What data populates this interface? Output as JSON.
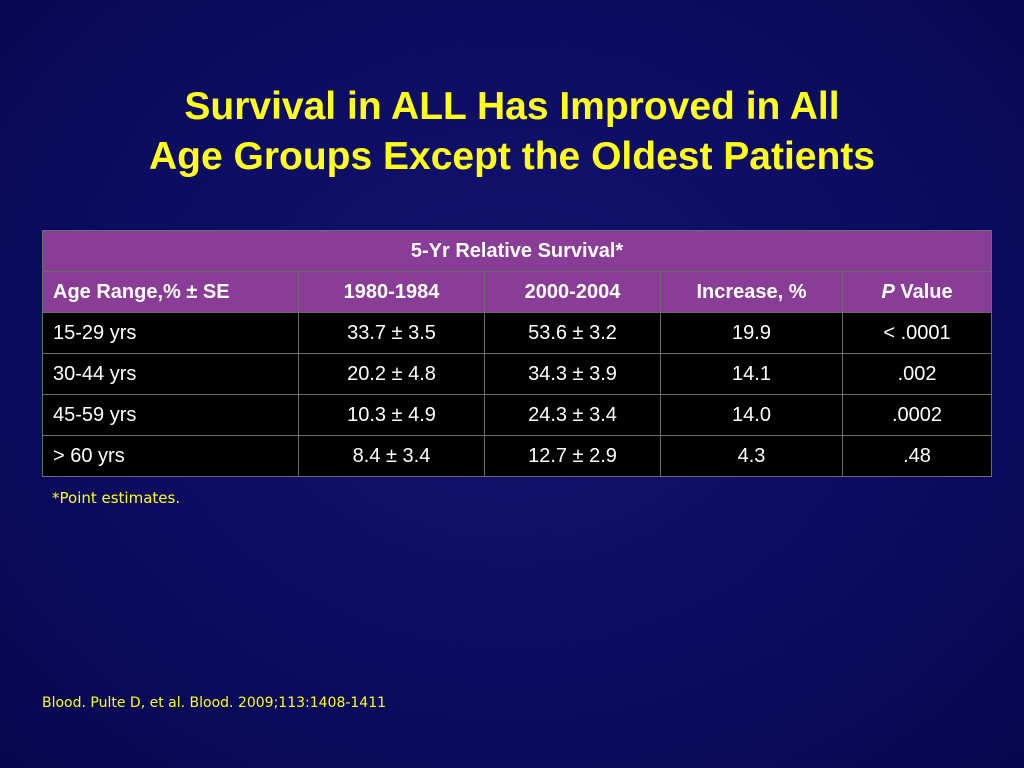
{
  "slide": {
    "title_line1": "Survival in ALL Has Improved in All",
    "title_line2": "Age Groups Except the Oldest Patients",
    "footnote": "*Point estimates.",
    "citation": "Blood. Pulte D, et al. Blood. 2009;113:1408-1411"
  },
  "table": {
    "group_header": "5-Yr Relative Survival*",
    "columns": {
      "age": "Age Range,% ± SE",
      "p1980": "1980-1984",
      "p2000": "2000-2004",
      "increase": "Increase, %",
      "p_letter": "P",
      "p_rest": " Value"
    },
    "rows": [
      {
        "age": "15-29 yrs",
        "p1980": "33.7 ± 3.5",
        "p2000": "53.6 ± 3.2",
        "increase": "19.9",
        "p": "< .0001"
      },
      {
        "age": "30-44 yrs",
        "p1980": "20.2 ± 4.8",
        "p2000": "34.3 ± 3.9",
        "increase": "14.1",
        "p": ".002"
      },
      {
        "age": "45-59 yrs",
        "p1980": "10.3 ± 4.9",
        "p2000": "24.3 ± 3.4",
        "increase": "14.0",
        "p": ".0002"
      },
      {
        "age": "> 60 yrs",
        "p1980": "8.4 ± 3.4",
        "p2000": "12.7 ± 2.9",
        "increase": "4.3",
        "p": ".48"
      }
    ]
  },
  "colors": {
    "background": "#0c0c62",
    "title_text": "#ffff1a",
    "header_fill": "#8a3d97",
    "body_fill": "#000000"
  }
}
